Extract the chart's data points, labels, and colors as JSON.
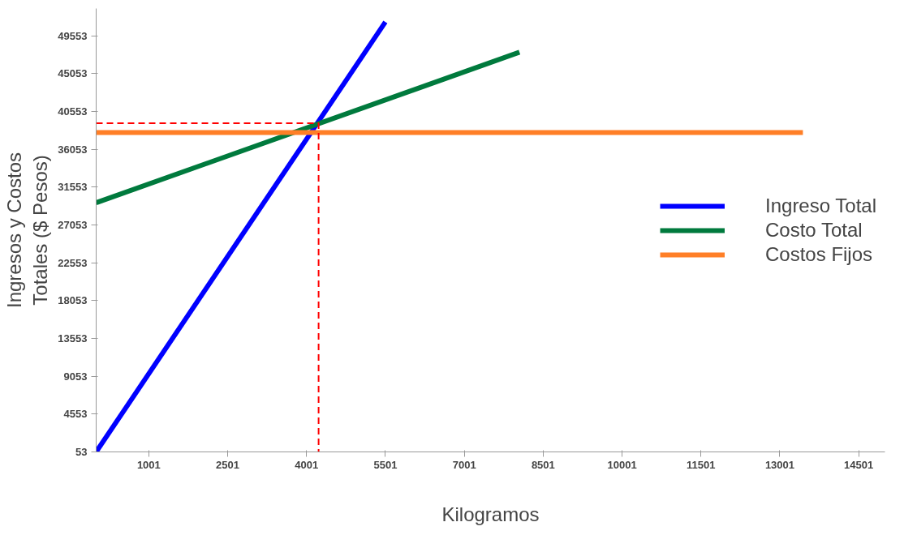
{
  "chart_data": {
    "type": "line",
    "xlabel": "Kilogramos",
    "ylabel": "Ingresos y Costos\nTotales ($ Pesos)",
    "xlim": [
      0,
      15000
    ],
    "ylim": [
      53,
      52800
    ],
    "xticks": [
      1001,
      2501,
      4001,
      5501,
      7001,
      8501,
      10001,
      11501,
      13001,
      14501
    ],
    "yticks": [
      53,
      4553,
      9053,
      13553,
      18053,
      22553,
      27053,
      31553,
      36053,
      40553,
      45053,
      49553
    ],
    "grid": false,
    "legend": "right",
    "series": [
      {
        "name": "Ingreso Total",
        "color": "#0000ff",
        "x": [
          0,
          5500
        ],
        "values": [
          53,
          51200
        ]
      },
      {
        "name": "Costo Total",
        "color": "#007a3d",
        "x": [
          0,
          8050
        ],
        "values": [
          29700,
          47600
        ]
      },
      {
        "name": "Costos Fijos",
        "color": "#ff7f27",
        "x": [
          0,
          13440
        ],
        "values": [
          38050,
          38050
        ]
      },
      {
        "color": "#ff0000",
        "line_style": "dashed",
        "x": [
          0,
          4230,
          4230
        ],
        "values": [
          39150,
          39150,
          53
        ]
      }
    ]
  }
}
